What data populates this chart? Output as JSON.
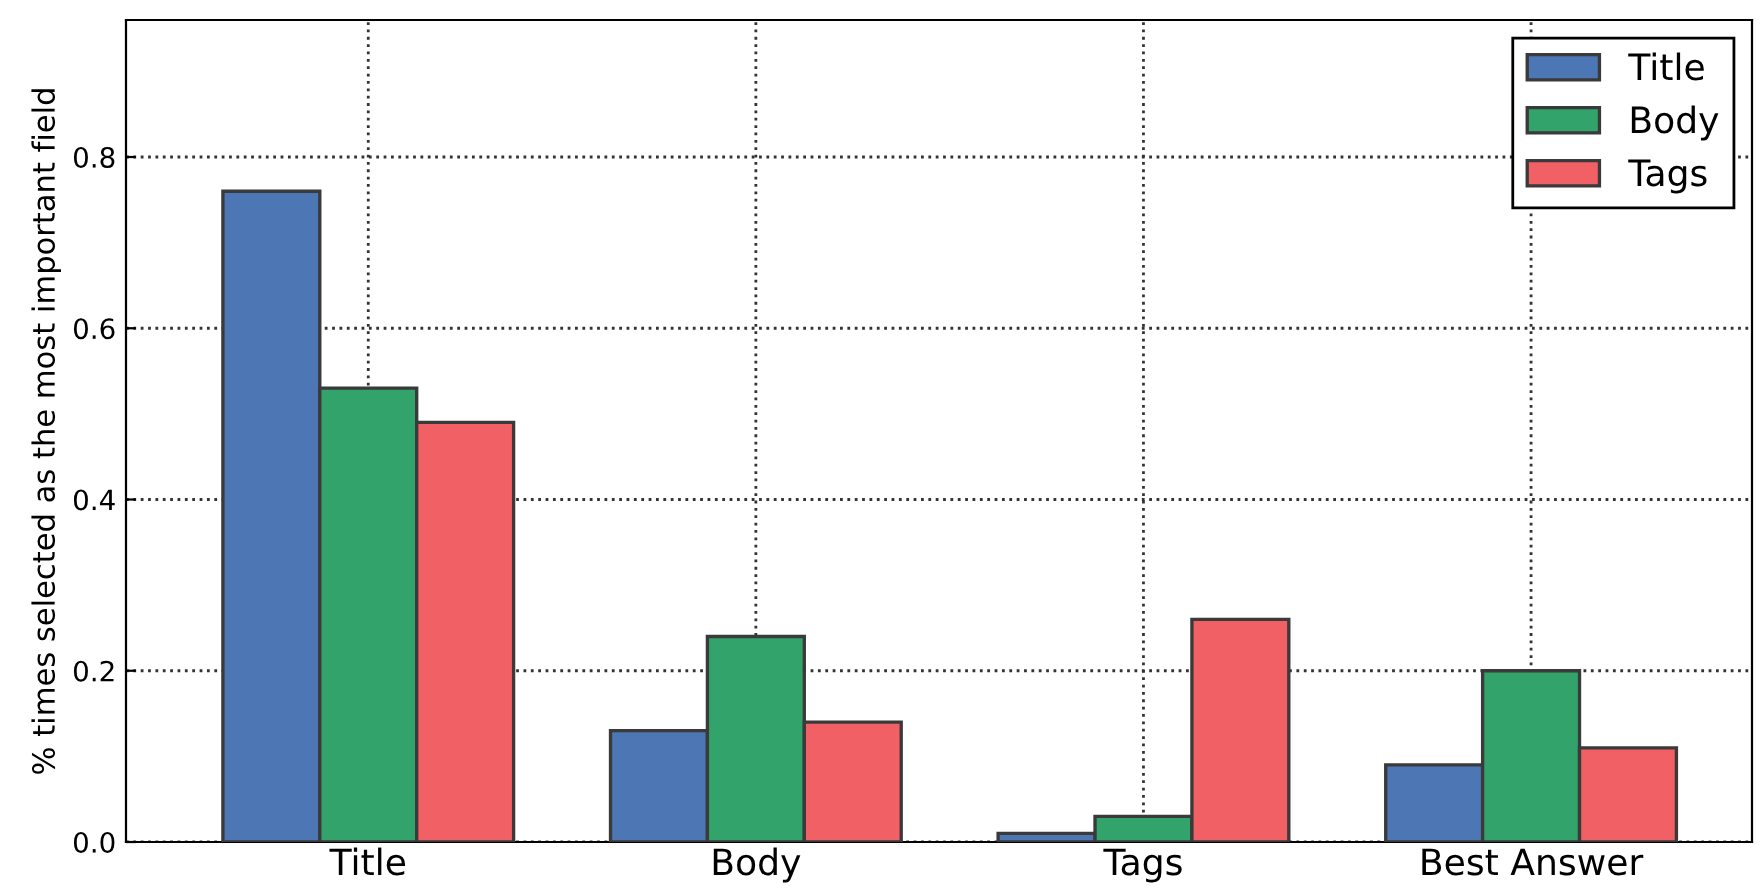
{
  "chart_data": {
    "type": "bar",
    "ylabel": "% times selected as the most important field",
    "categories": [
      "Title",
      "Body",
      "Tags",
      "Best Answer"
    ],
    "series": [
      {
        "name": "Title",
        "color": "#4c76b4",
        "values": [
          0.76,
          0.13,
          0.01,
          0.09
        ]
      },
      {
        "name": "Body",
        "color": "#32a36a",
        "values": [
          0.53,
          0.24,
          0.03,
          0.2
        ]
      },
      {
        "name": "Tags",
        "color": "#f06064",
        "values": [
          0.49,
          0.14,
          0.26,
          0.11
        ]
      }
    ],
    "ylim": [
      0,
      0.96
    ],
    "yticks": [
      {
        "value": 0,
        "label": "0.0"
      },
      0.2,
      0.4,
      0.6,
      0.8
    ],
    "grid": true,
    "legend": "top right"
  }
}
